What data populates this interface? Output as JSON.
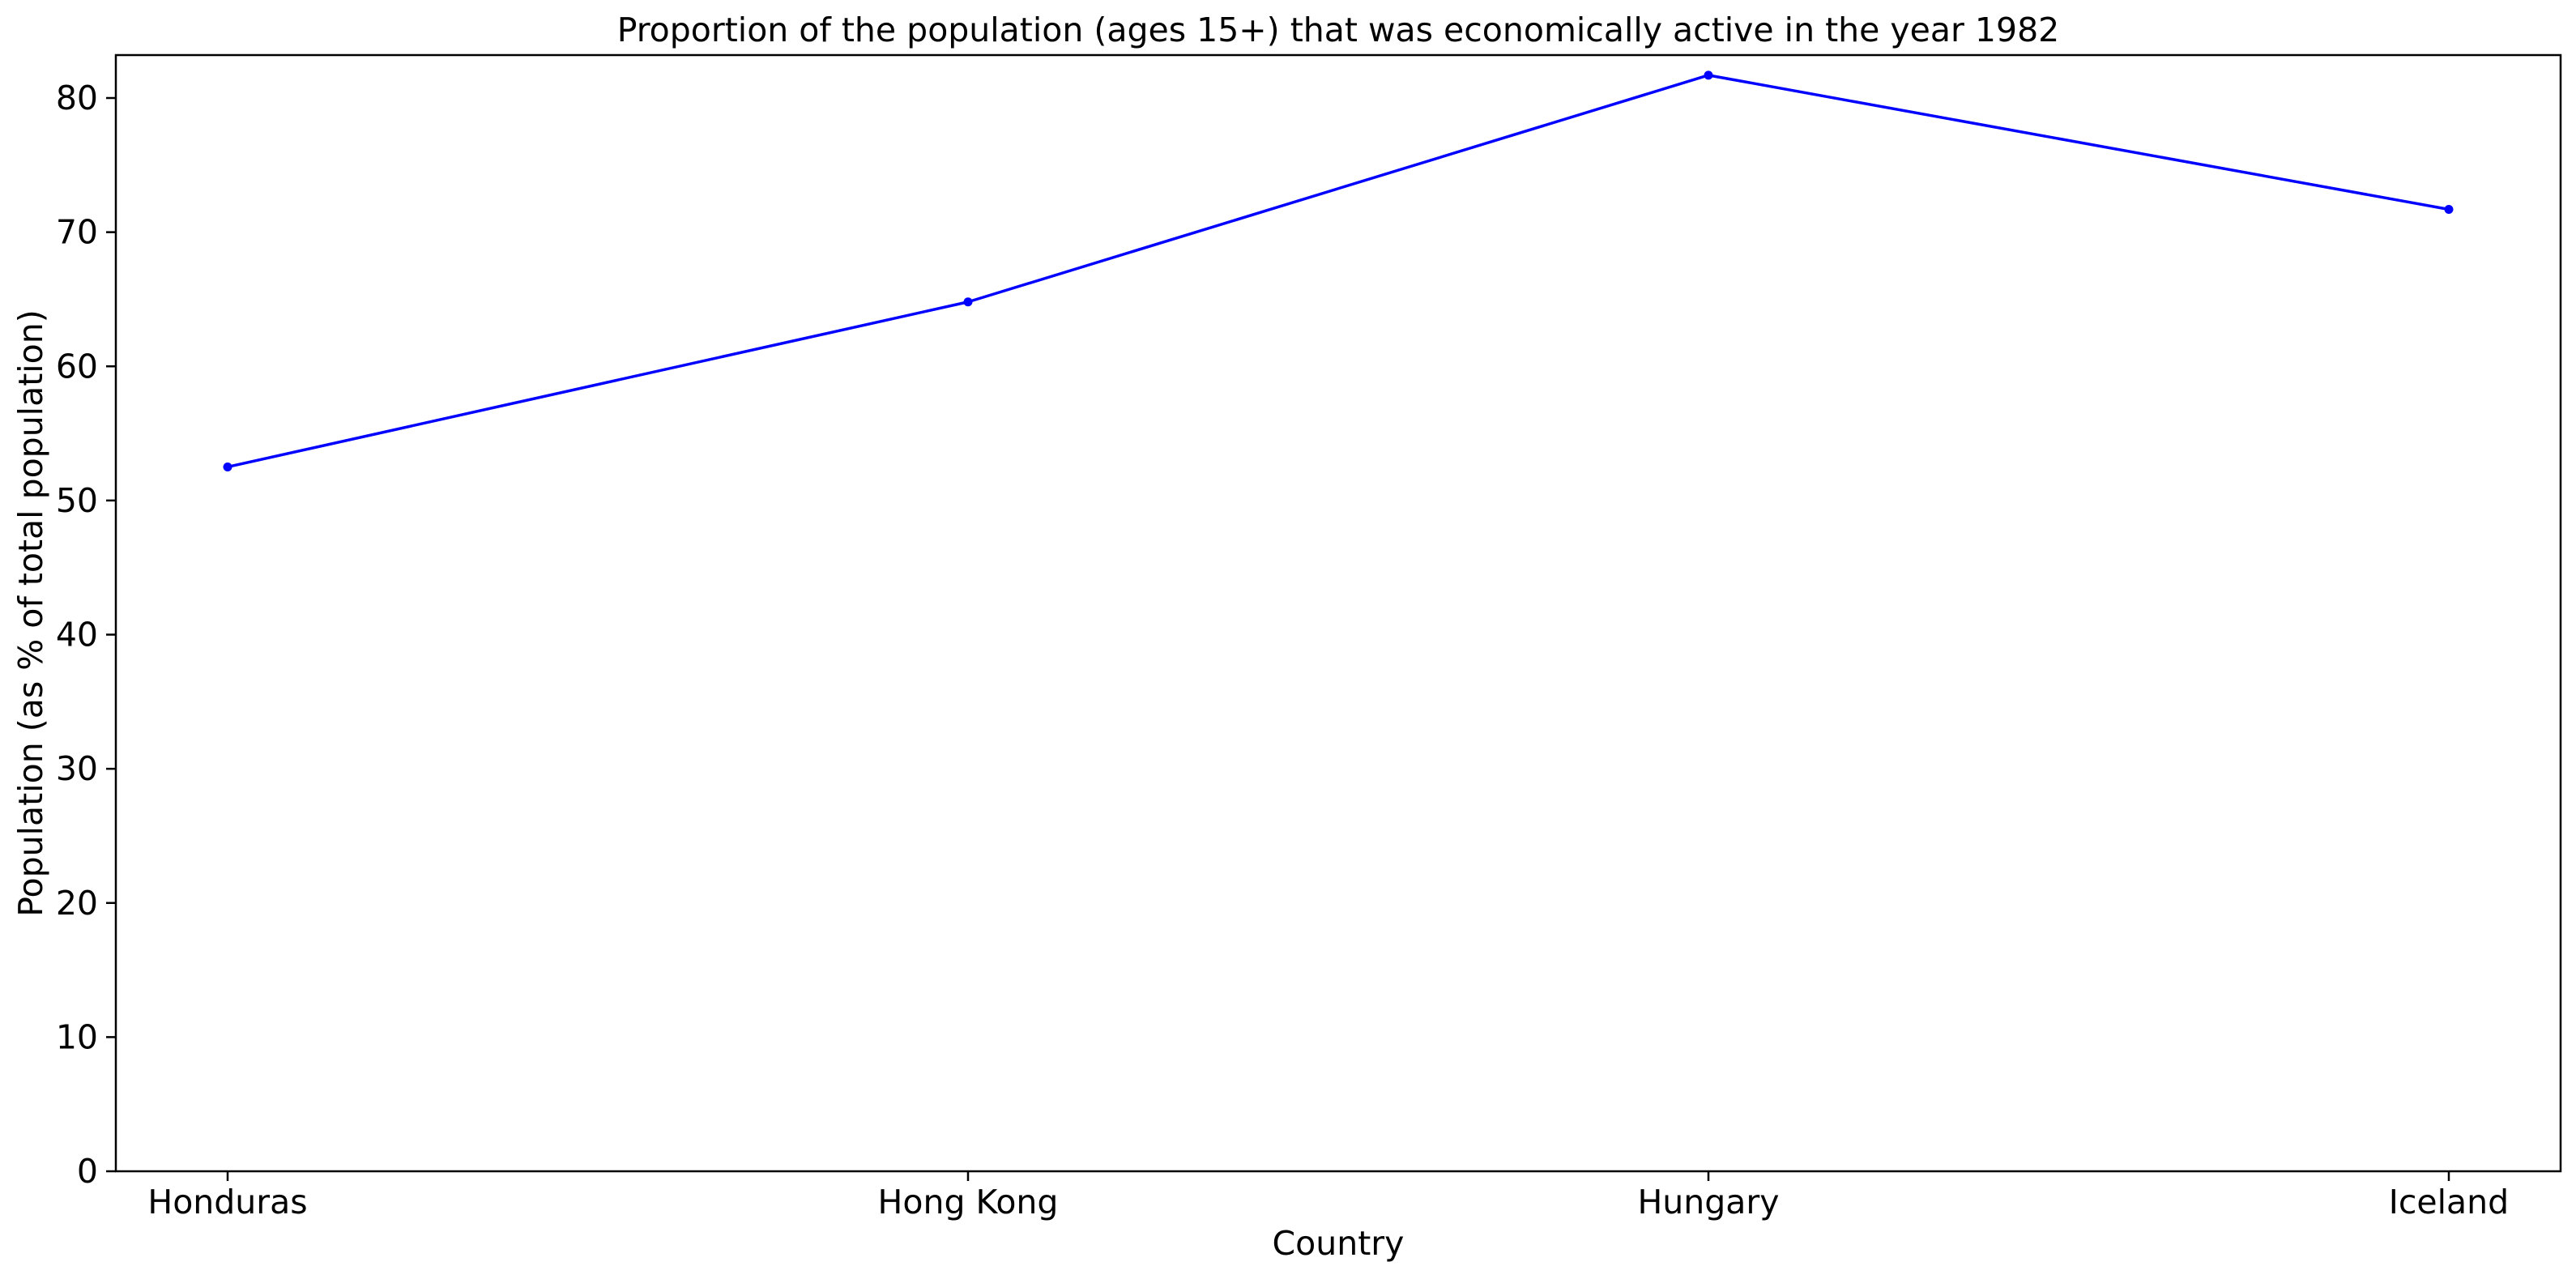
{
  "chart_data": {
    "type": "line",
    "title": "Proportion of the population (ages 15+) that was economically active in the year 1982",
    "xlabel": "Country",
    "ylabel": "Population (as % of total population)",
    "categories": [
      "Honduras",
      "Hong Kong",
      "Hungary",
      "Iceland"
    ],
    "series": [
      {
        "name": "Population (as % of total population)",
        "values": [
          52.5,
          64.8,
          81.7,
          71.7
        ],
        "color": "#0000ff",
        "marker": "point"
      }
    ],
    "ylim": [
      0,
      83.2
    ],
    "yticks": [
      0,
      10,
      20,
      30,
      40,
      50,
      60,
      70,
      80
    ],
    "grid": false,
    "legend": "none"
  }
}
